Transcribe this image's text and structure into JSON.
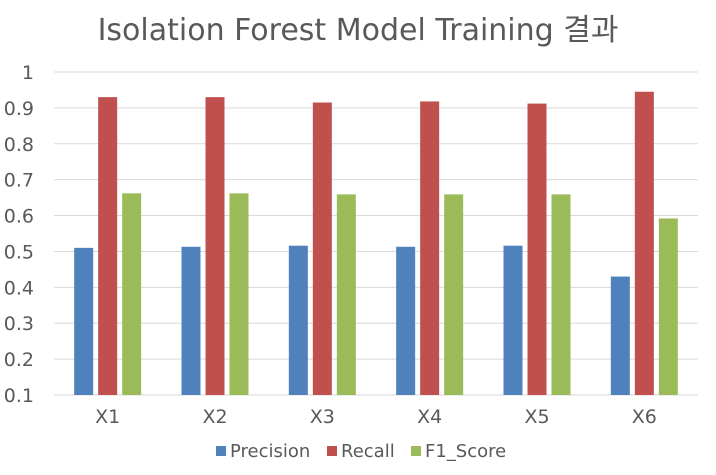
{
  "chart_data": {
    "type": "bar",
    "title": "Isolation Forest Model Training 결과",
    "xlabel": "",
    "ylabel": "",
    "ylim": [
      0.1,
      1
    ],
    "yticks": [
      "0.1",
      "0.2",
      "0.3",
      "0.4",
      "0.5",
      "0.6",
      "0.7",
      "0.8",
      "0.9",
      "1"
    ],
    "ytick_values": [
      0.1,
      0.2,
      0.3,
      0.4,
      0.5,
      0.6,
      0.7,
      0.8,
      0.9,
      1.0
    ],
    "categories": [
      "X1",
      "X2",
      "X3",
      "X4",
      "X5",
      "X6"
    ],
    "series": [
      {
        "name": "Precision",
        "color": "#4f81bd",
        "values": [
          0.51,
          0.513,
          0.516,
          0.513,
          0.516,
          0.43
        ]
      },
      {
        "name": "Recall",
        "color": "#c0504d",
        "values": [
          0.93,
          0.93,
          0.915,
          0.918,
          0.912,
          0.945
        ]
      },
      {
        "name": "F1_Score",
        "color": "#9bbb59",
        "values": [
          0.662,
          0.662,
          0.659,
          0.659,
          0.659,
          0.592
        ]
      }
    ],
    "grid": true,
    "legend": "bottom-center"
  }
}
